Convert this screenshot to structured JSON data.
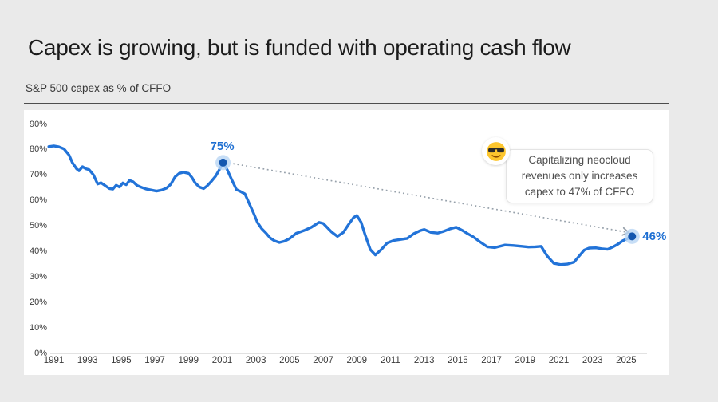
{
  "page": {
    "background": "#eaeaea"
  },
  "header": {
    "title": "Capex is growing, but is funded with operating cash flow",
    "subtitle": "S&P 500 capex as % of CFFO"
  },
  "annotation": {
    "emoji_icon": "sunglasses-face-emoji",
    "lines": [
      "Capitalizing neocloud",
      "revenues only increases",
      "capex to 47% of CFFO"
    ]
  },
  "chart_data": {
    "type": "line",
    "title": "S&P 500 capex as % of CFFO",
    "xlabel": "",
    "ylabel": "",
    "x_axis": {
      "ticks": [
        1991,
        1993,
        1995,
        1997,
        1999,
        2001,
        2003,
        2005,
        2007,
        2009,
        2011,
        2013,
        2015,
        2017,
        2019,
        2021,
        2023,
        2025
      ],
      "range": [
        1990.5,
        2026.3
      ]
    },
    "y_axis": {
      "ticks": [
        0,
        10,
        20,
        30,
        40,
        50,
        60,
        70,
        80,
        90
      ],
      "unit": "%",
      "range": [
        0,
        93
      ]
    },
    "grid": "off",
    "legend": "none",
    "colors": {
      "line": "#2273d8",
      "marker": "#1356ae",
      "marker_halo": "#b9d6f4",
      "point_label": "#1e6fd2",
      "dotted": "#97a1ab",
      "baseline": "#d9d9d9",
      "axis_text": "#3b3b3b"
    },
    "series": [
      {
        "name": "S&P 500 capex as % of CFFO",
        "points": [
          [
            1990.7,
            81.3
          ],
          [
            1991.0,
            81.6
          ],
          [
            1991.3,
            81.2
          ],
          [
            1991.6,
            80.4
          ],
          [
            1991.9,
            78.0
          ],
          [
            1992.1,
            75.0
          ],
          [
            1992.35,
            72.6
          ],
          [
            1992.5,
            71.8
          ],
          [
            1992.7,
            73.4
          ],
          [
            1992.9,
            72.6
          ],
          [
            1993.1,
            72.2
          ],
          [
            1993.35,
            70.2
          ],
          [
            1993.6,
            66.6
          ],
          [
            1993.8,
            67.1
          ],
          [
            1994.0,
            66.2
          ],
          [
            1994.3,
            64.8
          ],
          [
            1994.5,
            64.6
          ],
          [
            1994.7,
            66.1
          ],
          [
            1994.9,
            65.4
          ],
          [
            1995.1,
            67.0
          ],
          [
            1995.3,
            66.3
          ],
          [
            1995.5,
            68.0
          ],
          [
            1995.7,
            67.5
          ],
          [
            1995.95,
            66.0
          ],
          [
            1996.2,
            65.3
          ],
          [
            1996.5,
            64.6
          ],
          [
            1996.8,
            64.2
          ],
          [
            1997.1,
            63.8
          ],
          [
            1997.4,
            64.2
          ],
          [
            1997.7,
            65.0
          ],
          [
            1997.95,
            66.5
          ],
          [
            1998.2,
            69.4
          ],
          [
            1998.45,
            70.8
          ],
          [
            1998.7,
            71.2
          ],
          [
            1999.0,
            70.8
          ],
          [
            1999.2,
            69.2
          ],
          [
            1999.4,
            67.0
          ],
          [
            1999.65,
            65.4
          ],
          [
            1999.9,
            64.8
          ],
          [
            2000.1,
            65.8
          ],
          [
            2000.35,
            67.6
          ],
          [
            2000.6,
            69.6
          ],
          [
            2000.85,
            72.4
          ],
          [
            2001.05,
            75.0
          ],
          [
            2001.3,
            72.2
          ],
          [
            2001.6,
            67.8
          ],
          [
            2001.85,
            64.4
          ],
          [
            2002.1,
            63.6
          ],
          [
            2002.35,
            62.7
          ],
          [
            2002.6,
            59.0
          ],
          [
            2002.85,
            55.4
          ],
          [
            2003.1,
            51.4
          ],
          [
            2003.35,
            49.0
          ],
          [
            2003.6,
            47.3
          ],
          [
            2003.85,
            45.4
          ],
          [
            2004.1,
            44.3
          ],
          [
            2004.4,
            43.6
          ],
          [
            2004.7,
            44.1
          ],
          [
            2005.0,
            45.1
          ],
          [
            2005.4,
            47.2
          ],
          [
            2005.9,
            48.4
          ],
          [
            2006.3,
            49.6
          ],
          [
            2006.75,
            51.5
          ],
          [
            2007.0,
            51.1
          ],
          [
            2007.5,
            47.7
          ],
          [
            2007.85,
            46.0
          ],
          [
            2008.2,
            47.6
          ],
          [
            2008.5,
            50.6
          ],
          [
            2008.8,
            53.4
          ],
          [
            2009.0,
            54.2
          ],
          [
            2009.25,
            51.6
          ],
          [
            2009.5,
            46.4
          ],
          [
            2009.8,
            40.8
          ],
          [
            2010.1,
            38.7
          ],
          [
            2010.45,
            40.8
          ],
          [
            2010.8,
            43.4
          ],
          [
            2011.2,
            44.4
          ],
          [
            2011.6,
            44.8
          ],
          [
            2012.0,
            45.2
          ],
          [
            2012.4,
            47.1
          ],
          [
            2012.75,
            48.2
          ],
          [
            2013.0,
            48.7
          ],
          [
            2013.4,
            47.6
          ],
          [
            2013.8,
            47.3
          ],
          [
            2014.2,
            48.1
          ],
          [
            2014.55,
            49.0
          ],
          [
            2014.9,
            49.6
          ],
          [
            2015.3,
            48.2
          ],
          [
            2015.6,
            47.0
          ],
          [
            2015.9,
            45.9
          ],
          [
            2016.3,
            43.9
          ],
          [
            2016.75,
            41.9
          ],
          [
            2017.2,
            41.6
          ],
          [
            2017.8,
            42.6
          ],
          [
            2018.3,
            42.4
          ],
          [
            2018.8,
            42.1
          ],
          [
            2019.2,
            41.8
          ],
          [
            2019.6,
            41.9
          ],
          [
            2019.95,
            42.1
          ],
          [
            2020.3,
            38.4
          ],
          [
            2020.7,
            35.4
          ],
          [
            2021.1,
            34.9
          ],
          [
            2021.5,
            35.1
          ],
          [
            2021.9,
            35.9
          ],
          [
            2022.2,
            38.2
          ],
          [
            2022.5,
            40.6
          ],
          [
            2022.8,
            41.4
          ],
          [
            2023.2,
            41.5
          ],
          [
            2023.6,
            41.1
          ],
          [
            2023.9,
            40.9
          ],
          [
            2024.2,
            41.8
          ],
          [
            2024.5,
            42.9
          ],
          [
            2024.8,
            44.3
          ],
          [
            2025.1,
            45.2
          ],
          [
            2025.35,
            46.0
          ]
        ]
      }
    ],
    "markers": [
      {
        "name": "peak-2001",
        "year": 2001.05,
        "value": 75,
        "label": "75%",
        "label_side": "above"
      },
      {
        "name": "latest-2025",
        "year": 2025.35,
        "value": 46,
        "label": "46%",
        "label_side": "right"
      }
    ],
    "trend_arrow": {
      "from": {
        "year": 2001.65,
        "value": 74.6
      },
      "to": {
        "year": 2025.0,
        "value": 47.7
      }
    }
  }
}
